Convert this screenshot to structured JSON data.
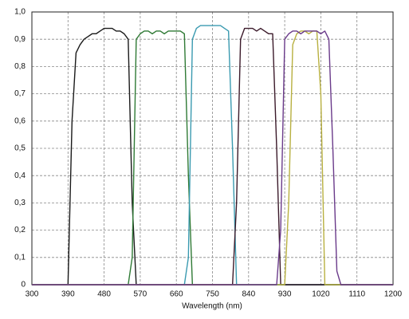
{
  "chart_data": {
    "type": "line",
    "x_label": "Wavelength (nm)",
    "x": [
      300,
      310,
      320,
      330,
      340,
      350,
      360,
      370,
      380,
      390,
      400,
      410,
      420,
      430,
      440,
      450,
      460,
      470,
      480,
      490,
      500,
      510,
      520,
      530,
      540,
      550,
      560,
      570,
      580,
      590,
      600,
      610,
      620,
      630,
      640,
      650,
      660,
      670,
      680,
      690,
      700,
      710,
      720,
      730,
      740,
      750,
      760,
      770,
      780,
      790,
      800,
      810,
      820,
      830,
      840,
      850,
      860,
      870,
      880,
      890,
      900,
      910,
      920,
      930,
      940,
      950,
      960,
      970,
      980,
      990,
      1000,
      1010,
      1020,
      1030,
      1040,
      1050,
      1060,
      1070,
      1080,
      1090,
      1100,
      1110,
      1120,
      1130,
      1140,
      1150,
      1160,
      1170,
      1180,
      1190,
      1200
    ],
    "series": [
      {
        "color": "#1a1a1a",
        "values": [
          0,
          0,
          0,
          0,
          0,
          0,
          0,
          0,
          0,
          0,
          0.6,
          0.85,
          0.88,
          0.9,
          0.91,
          0.92,
          0.92,
          0.93,
          0.94,
          0.94,
          0.94,
          0.93,
          0.93,
          0.92,
          0.9,
          0.3,
          0,
          0,
          0,
          0,
          0,
          0,
          0,
          0,
          0,
          0,
          0,
          0,
          0,
          0,
          0,
          0,
          0,
          0,
          0,
          0,
          0,
          0,
          0,
          0,
          0,
          0,
          0,
          0,
          0,
          0,
          0,
          0,
          0,
          0,
          0,
          0,
          0,
          0,
          0,
          0,
          0,
          0,
          0,
          0,
          0,
          0,
          0,
          0,
          0,
          0,
          0,
          0,
          0,
          0,
          0,
          0,
          0,
          0,
          0,
          0,
          0,
          0,
          0,
          0,
          0
        ]
      },
      {
        "color": "#2f7a35",
        "values": [
          0,
          0,
          0,
          0,
          0,
          0,
          0,
          0,
          0,
          0,
          0,
          0,
          0,
          0,
          0,
          0,
          0,
          0,
          0,
          0,
          0,
          0,
          0,
          0,
          0,
          0.1,
          0.9,
          0.92,
          0.93,
          0.93,
          0.92,
          0.93,
          0.93,
          0.92,
          0.93,
          0.93,
          0.93,
          0.93,
          0.92,
          0.4,
          0,
          0,
          0,
          0,
          0,
          0,
          0,
          0,
          0,
          0,
          0,
          0,
          0,
          0,
          0,
          0,
          0,
          0,
          0,
          0,
          0,
          0,
          0,
          0,
          0,
          0,
          0,
          0,
          0,
          0,
          0,
          0,
          0,
          0,
          0,
          0,
          0,
          0,
          0,
          0,
          0,
          0,
          0,
          0,
          0,
          0,
          0,
          0,
          0,
          0,
          0
        ]
      },
      {
        "color": "#3a9ab0",
        "values": [
          0,
          0,
          0,
          0,
          0,
          0,
          0,
          0,
          0,
          0,
          0,
          0,
          0,
          0,
          0,
          0,
          0,
          0,
          0,
          0,
          0,
          0,
          0,
          0,
          0,
          0,
          0,
          0,
          0,
          0,
          0,
          0,
          0,
          0,
          0,
          0,
          0,
          0,
          0,
          0.1,
          0.9,
          0.94,
          0.95,
          0.95,
          0.95,
          0.95,
          0.95,
          0.95,
          0.94,
          0.93,
          0.5,
          0,
          0,
          0,
          0,
          0,
          0,
          0,
          0,
          0,
          0,
          0,
          0,
          0,
          0,
          0,
          0,
          0,
          0,
          0,
          0,
          0,
          0,
          0,
          0,
          0,
          0,
          0,
          0,
          0,
          0,
          0,
          0,
          0,
          0,
          0,
          0,
          0,
          0,
          0,
          0
        ]
      },
      {
        "color": "#3b1a2a",
        "values": [
          0,
          0,
          0,
          0,
          0,
          0,
          0,
          0,
          0,
          0,
          0,
          0,
          0,
          0,
          0,
          0,
          0,
          0,
          0,
          0,
          0,
          0,
          0,
          0,
          0,
          0,
          0,
          0,
          0,
          0,
          0,
          0,
          0,
          0,
          0,
          0,
          0,
          0,
          0,
          0,
          0,
          0,
          0,
          0,
          0,
          0,
          0,
          0,
          0,
          0,
          0,
          0.3,
          0.9,
          0.94,
          0.94,
          0.94,
          0.93,
          0.94,
          0.93,
          0.92,
          0.92,
          0.5,
          0,
          0,
          0,
          0,
          0,
          0,
          0,
          0,
          0,
          0,
          0,
          0,
          0,
          0,
          0,
          0,
          0,
          0,
          0,
          0,
          0,
          0,
          0,
          0,
          0,
          0,
          0,
          0,
          0
        ]
      },
      {
        "color": "#b8b040",
        "values": [
          0,
          0,
          0,
          0,
          0,
          0,
          0,
          0,
          0,
          0,
          0,
          0,
          0,
          0,
          0,
          0,
          0,
          0,
          0,
          0,
          0,
          0,
          0,
          0,
          0,
          0,
          0,
          0,
          0,
          0,
          0,
          0,
          0,
          0,
          0,
          0,
          0,
          0,
          0,
          0,
          0,
          0,
          0,
          0,
          0,
          0,
          0,
          0,
          0,
          0,
          0,
          0,
          0,
          0,
          0,
          0,
          0,
          0,
          0,
          0,
          0,
          0,
          0,
          0,
          0.3,
          0.88,
          0.92,
          0.93,
          0.93,
          0.92,
          0.93,
          0.93,
          0.7,
          0,
          0,
          0,
          0,
          0,
          0,
          0,
          0,
          0,
          0,
          0,
          0,
          0,
          0,
          0,
          0,
          0,
          0
        ]
      },
      {
        "color": "#6a3a8a",
        "values": [
          0,
          0,
          0,
          0,
          0,
          0,
          0,
          0,
          0,
          0,
          0,
          0,
          0,
          0,
          0,
          0,
          0,
          0,
          0,
          0,
          0,
          0,
          0,
          0,
          0,
          0,
          0,
          0,
          0,
          0,
          0,
          0,
          0,
          0,
          0,
          0,
          0,
          0,
          0,
          0,
          0,
          0,
          0,
          0,
          0,
          0,
          0,
          0,
          0,
          0,
          0,
          0,
          0,
          0,
          0,
          0,
          0,
          0,
          0,
          0,
          0,
          0,
          0.2,
          0.9,
          0.92,
          0.93,
          0.93,
          0.92,
          0.93,
          0.93,
          0.93,
          0.93,
          0.92,
          0.93,
          0.9,
          0.5,
          0.05,
          0,
          0,
          0,
          0,
          0,
          0,
          0,
          0,
          0,
          0,
          0,
          0,
          0,
          0
        ]
      }
    ],
    "xlim": [
      300,
      1200
    ],
    "xticks": [
      300,
      390,
      480,
      570,
      660,
      750,
      840,
      930,
      1020,
      1110,
      1200
    ],
    "ylim": [
      0,
      1
    ],
    "yticks": [
      0,
      {
        "value": 0.1,
        "label": "0,1"
      },
      {
        "value": 0.2,
        "label": "0,2"
      },
      {
        "value": 0.3,
        "label": "0,3"
      },
      {
        "value": 0.4,
        "label": "0,4"
      },
      {
        "value": 0.5,
        "label": "0,5"
      },
      {
        "value": 0.6,
        "label": "0,6"
      },
      {
        "value": 0.7,
        "label": "0,7"
      },
      {
        "value": 0.8,
        "label": "0,8"
      },
      {
        "value": 0.9,
        "label": "0,9"
      },
      {
        "value": 1,
        "label": "1,0"
      }
    ],
    "grid": true
  }
}
